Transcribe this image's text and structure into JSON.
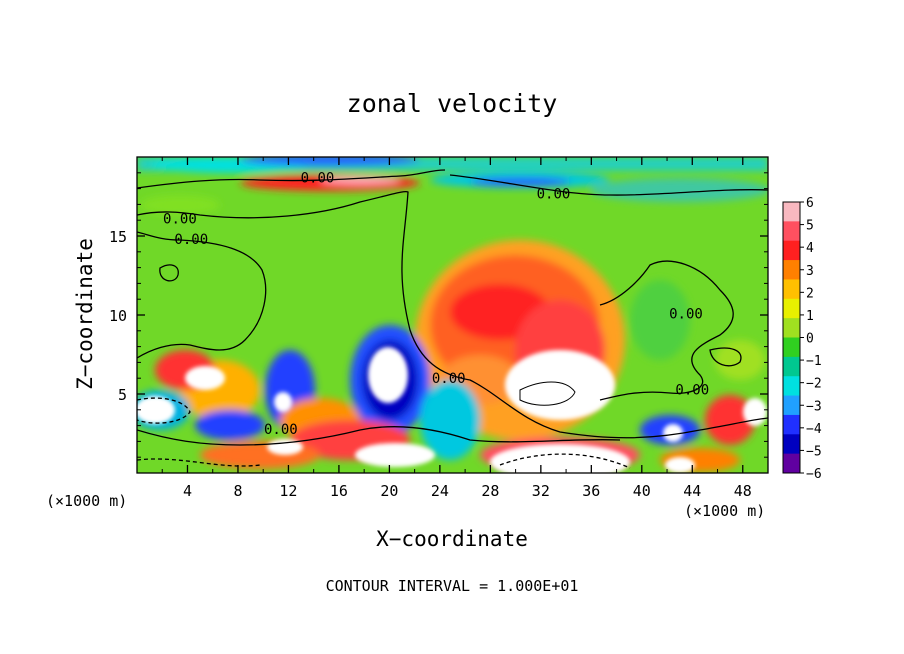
{
  "chart_data": {
    "type": "heatmap",
    "title": "zonal velocity",
    "xlabel": "X−coordinate",
    "ylabel": "Z−coordinate",
    "x_unit_label": "(×1000 m)",
    "z_unit_label": "(×1000 m)",
    "footer": "CONTOUR INTERVAL = 1.000E+01",
    "xlim": [
      0,
      50
    ],
    "ylim": [
      0,
      20
    ],
    "x_ticks": [
      "4",
      "8",
      "12",
      "16",
      "20",
      "24",
      "28",
      "32",
      "36",
      "40",
      "44",
      "48"
    ],
    "y_ticks": [
      "5",
      "10",
      "15"
    ],
    "colorbar": {
      "range": [
        -6,
        6
      ],
      "tick_labels": [
        "6",
        "5",
        "4",
        "3",
        "2",
        "1",
        "0",
        "−1",
        "−2",
        "−3",
        "−4",
        "−5",
        "−6"
      ],
      "colors": [
        "#f8b8c0",
        "#ff5060",
        "#ff2020",
        "#ff8000",
        "#ffc000",
        "#e8f000",
        "#a0e020",
        "#30d020",
        "#00c890",
        "#00e0e0",
        "#20a0ff",
        "#2030ff",
        "#0000c0",
        "#6000a0"
      ]
    },
    "contour_labels": [
      {
        "text": "0.00",
        "x": 14.3,
        "z": 18.7
      },
      {
        "text": "0.00",
        "x": 33.0,
        "z": 17.7
      },
      {
        "text": "0.00",
        "x": 3.4,
        "z": 16.1
      },
      {
        "text": "0.00",
        "x": 4.3,
        "z": 14.8
      },
      {
        "text": "0.00",
        "x": 43.5,
        "z": 10.1
      },
      {
        "text": "0.00",
        "x": 24.7,
        "z": 6.0
      },
      {
        "text": "0.00",
        "x": 44.0,
        "z": 5.3
      },
      {
        "text": "0.00",
        "x": 11.4,
        "z": 2.8
      }
    ]
  }
}
